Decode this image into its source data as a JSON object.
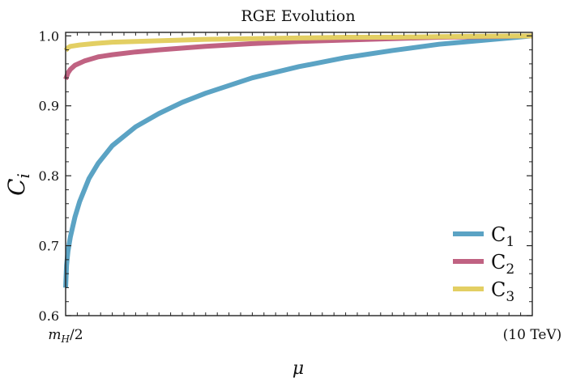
{
  "chart_data": {
    "type": "line",
    "title": "RGE Evolution",
    "xlabel": "μ",
    "ylabel": "C",
    "ylabel_sub": "i",
    "x_scale": "log",
    "x_ticks": [
      {
        "label_main": "m",
        "label_sub": "H",
        "label_tail": "/2",
        "pos": 0
      },
      {
        "label_main": "(10 TeV)",
        "label_sub": "",
        "label_tail": "",
        "pos": 1
      }
    ],
    "y_ticks": [
      "0.6",
      "0.7",
      "0.8",
      "0.9",
      "1.0"
    ],
    "ylim": [
      0.6,
      1.005
    ],
    "xlim": [
      0,
      1
    ],
    "legend_position": "lower-right",
    "series": [
      {
        "name": "C",
        "name_sub": "1",
        "color": "#5ba3c4",
        "x": [
          0,
          0.002,
          0.005,
          0.01,
          0.02,
          0.03,
          0.05,
          0.07,
          0.1,
          0.15,
          0.2,
          0.25,
          0.3,
          0.4,
          0.5,
          0.6,
          0.7,
          0.8,
          0.9,
          1.0
        ],
        "y": [
          0.64,
          0.672,
          0.692,
          0.712,
          0.741,
          0.763,
          0.796,
          0.818,
          0.843,
          0.87,
          0.889,
          0.905,
          0.918,
          0.94,
          0.956,
          0.969,
          0.979,
          0.988,
          0.994,
          1.0
        ]
      },
      {
        "name": "C",
        "name_sub": "2",
        "color": "#c06282",
        "x": [
          0,
          0.005,
          0.01,
          0.02,
          0.04,
          0.07,
          0.1,
          0.15,
          0.2,
          0.3,
          0.4,
          0.5,
          0.6,
          0.7,
          0.8,
          0.9,
          1.0
        ],
        "y": [
          0.938,
          0.947,
          0.952,
          0.958,
          0.964,
          0.97,
          0.973,
          0.977,
          0.98,
          0.985,
          0.989,
          0.992,
          0.994,
          0.996,
          0.998,
          0.999,
          1.0
        ]
      },
      {
        "name": "C",
        "name_sub": "3",
        "color": "#e3cf63",
        "x": [
          0,
          0.005,
          0.01,
          0.03,
          0.06,
          0.1,
          0.2,
          0.3,
          0.4,
          0.5,
          0.6,
          0.7,
          0.8,
          0.9,
          1.0
        ],
        "y": [
          0.979,
          0.983,
          0.985,
          0.987,
          0.989,
          0.991,
          0.993,
          0.995,
          0.996,
          0.997,
          0.998,
          0.998,
          0.999,
          0.9995,
          1.0
        ]
      }
    ]
  }
}
